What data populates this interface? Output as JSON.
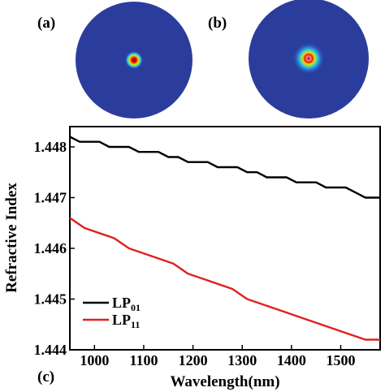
{
  "panels": {
    "a": "(a)",
    "b": "(b)",
    "c": "(c)"
  },
  "mode_images": {
    "disk_color": "#2b3d9c",
    "a": {
      "spot": "small"
    },
    "b": {
      "spot": "large"
    }
  },
  "chart_data": {
    "type": "line",
    "xlabel": "Wavelength(nm)",
    "ylabel": "Refractive Index",
    "xlim": [
      950,
      1580
    ],
    "ylim": [
      1.444,
      1.4484
    ],
    "xticks": [
      1000,
      1100,
      1200,
      1300,
      1400,
      1500
    ],
    "yticks": [
      1.444,
      1.445,
      1.446,
      1.447,
      1.448
    ],
    "ytick_labels": [
      "1.444",
      "1.445",
      "1.446",
      "1.447",
      "1.448"
    ],
    "legend_position": "bottom-left",
    "series": [
      {
        "name": "LP01",
        "label_main": "LP",
        "label_sub": "01",
        "color": "#000000",
        "x": [
          950,
          970,
          990,
          1010,
          1030,
          1050,
          1070,
          1090,
          1110,
          1130,
          1150,
          1170,
          1190,
          1210,
          1230,
          1250,
          1270,
          1290,
          1310,
          1330,
          1350,
          1370,
          1390,
          1410,
          1430,
          1450,
          1470,
          1490,
          1510,
          1530,
          1550,
          1570,
          1580
        ],
        "values": [
          1.4482,
          1.4481,
          1.4481,
          1.4481,
          1.448,
          1.448,
          1.448,
          1.4479,
          1.4479,
          1.4479,
          1.4478,
          1.4478,
          1.4477,
          1.4477,
          1.4477,
          1.4476,
          1.4476,
          1.4476,
          1.4475,
          1.4475,
          1.4474,
          1.4474,
          1.4474,
          1.4473,
          1.4473,
          1.4473,
          1.4472,
          1.4472,
          1.4472,
          1.4471,
          1.447,
          1.447,
          1.447
        ]
      },
      {
        "name": "LP11",
        "label_main": "LP",
        "label_sub": "11",
        "color": "#e02020",
        "x": [
          950,
          980,
          1040,
          1070,
          1160,
          1190,
          1280,
          1310,
          1400,
          1430,
          1520,
          1550,
          1580
        ],
        "values": [
          1.4466,
          1.4464,
          1.4462,
          1.446,
          1.4457,
          1.4455,
          1.4452,
          1.445,
          1.4447,
          1.4446,
          1.4443,
          1.4442,
          1.4442
        ]
      }
    ]
  }
}
